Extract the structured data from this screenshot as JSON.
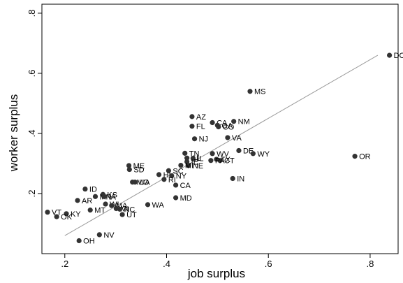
{
  "chart_data": {
    "type": "scatter",
    "xlabel": "job surplus",
    "ylabel": "worker surplus",
    "xlim": [
      0.155,
      0.855
    ],
    "ylim": [
      0.0,
      0.83
    ],
    "xticks": [
      {
        "value": 0.2,
        "label": ".2"
      },
      {
        "value": 0.4,
        "label": ".4"
      },
      {
        "value": 0.6,
        "label": ".6"
      },
      {
        "value": 0.8,
        "label": ".8"
      }
    ],
    "yticks": [
      {
        "value": 0.2,
        "label": ".2"
      },
      {
        "value": 0.4,
        "label": ".4"
      },
      {
        "value": 0.6,
        "label": ".6"
      },
      {
        "value": 0.8,
        "label": ".8"
      }
    ],
    "grid": false,
    "marker_color": "#333333",
    "line_color": "#999999",
    "fit_line": {
      "x": [
        0.2,
        0.815
      ],
      "y": [
        0.06,
        0.66
      ]
    },
    "points": [
      {
        "label": "DC",
        "x": 0.838,
        "y": 0.66
      },
      {
        "label": "MS",
        "x": 0.564,
        "y": 0.54
      },
      {
        "label": "OR",
        "x": 0.77,
        "y": 0.324
      },
      {
        "label": "AZ",
        "x": 0.45,
        "y": 0.456
      },
      {
        "label": "CA",
        "x": 0.49,
        "y": 0.436
      },
      {
        "label": "GA",
        "x": 0.5,
        "y": 0.427
      },
      {
        "label": "CO",
        "x": 0.502,
        "y": 0.422
      },
      {
        "label": "NM",
        "x": 0.532,
        "y": 0.44
      },
      {
        "label": "FL",
        "x": 0.45,
        "y": 0.424
      },
      {
        "label": "VA",
        "x": 0.52,
        "y": 0.386
      },
      {
        "label": "NJ",
        "x": 0.455,
        "y": 0.382
      },
      {
        "label": "DE",
        "x": 0.542,
        "y": 0.343
      },
      {
        "label": "WY",
        "x": 0.57,
        "y": 0.333
      },
      {
        "label": "WV",
        "x": 0.49,
        "y": 0.333
      },
      {
        "label": "TN",
        "x": 0.436,
        "y": 0.334
      },
      {
        "label": "AL",
        "x": 0.44,
        "y": 0.318
      },
      {
        "label": "IL",
        "x": 0.452,
        "y": 0.317
      },
      {
        "label": "TX",
        "x": 0.498,
        "y": 0.314
      },
      {
        "label": "CT",
        "x": 0.505,
        "y": 0.31
      },
      {
        "label": "PA",
        "x": 0.487,
        "y": 0.31
      },
      {
        "label": "IE",
        "x": 0.44,
        "y": 0.306
      },
      {
        "label": "NE",
        "x": 0.443,
        "y": 0.293
      },
      {
        "label": "MI",
        "x": 0.428,
        "y": 0.294
      },
      {
        "label": "IN",
        "x": 0.53,
        "y": 0.25
      },
      {
        "label": "ME",
        "x": 0.326,
        "y": 0.293
      },
      {
        "label": "SD",
        "x": 0.327,
        "y": 0.28
      },
      {
        "label": "SC",
        "x": 0.404,
        "y": 0.276
      },
      {
        "label": "HI",
        "x": 0.385,
        "y": 0.263
      },
      {
        "label": "NY",
        "x": 0.41,
        "y": 0.259
      },
      {
        "label": "RI",
        "x": 0.395,
        "y": 0.247
      },
      {
        "label": "CA",
        "x": 0.418,
        "y": 0.228
      },
      {
        "label": "MO",
        "x": 0.333,
        "y": 0.238
      },
      {
        "label": "UA",
        "x": 0.338,
        "y": 0.238
      },
      {
        "label": "ID",
        "x": 0.24,
        "y": 0.215
      },
      {
        "label": "KS",
        "x": 0.275,
        "y": 0.197
      },
      {
        "label": "MN",
        "x": 0.26,
        "y": 0.19
      },
      {
        "label": "IA",
        "x": 0.278,
        "y": 0.19
      },
      {
        "label": "AR",
        "x": 0.225,
        "y": 0.177
      },
      {
        "label": "MD",
        "x": 0.418,
        "y": 0.186
      },
      {
        "label": "WA",
        "x": 0.363,
        "y": 0.163
      },
      {
        "label": "WI",
        "x": 0.28,
        "y": 0.165
      },
      {
        "label": "MA",
        "x": 0.292,
        "y": 0.16
      },
      {
        "label": "MT",
        "x": 0.25,
        "y": 0.145
      },
      {
        "label": "MI",
        "x": 0.301,
        "y": 0.15
      },
      {
        "label": "NC",
        "x": 0.308,
        "y": 0.148
      },
      {
        "label": "UT",
        "x": 0.313,
        "y": 0.13
      },
      {
        "label": "VT",
        "x": 0.166,
        "y": 0.138
      },
      {
        "label": "KY",
        "x": 0.203,
        "y": 0.133
      },
      {
        "label": "OK",
        "x": 0.184,
        "y": 0.123
      },
      {
        "label": "NV",
        "x": 0.268,
        "y": 0.063
      },
      {
        "label": "OH",
        "x": 0.228,
        "y": 0.043
      }
    ]
  }
}
